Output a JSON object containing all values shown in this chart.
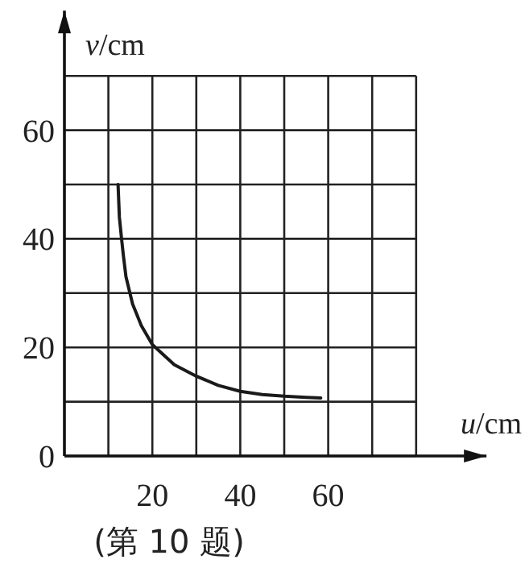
{
  "chart_data": {
    "type": "line",
    "xlabel": "*u*/cm",
    "ylabel": "*v*/cm",
    "annotations": [
      "(第 10 题)"
    ],
    "xlim": [
      0,
      96
    ],
    "ylim": [
      0,
      82
    ],
    "xticks": [
      {
        "value": 10,
        "label": null
      },
      20,
      {
        "value": 30,
        "label": null
      },
      40,
      {
        "value": 50,
        "label": null
      },
      60,
      {
        "value": 70,
        "label": null
      },
      {
        "value": 80,
        "label": null
      }
    ],
    "yticks": [
      0,
      {
        "value": 10,
        "label": null
      },
      20,
      {
        "value": 30,
        "label": null
      },
      40,
      {
        "value": 50,
        "label": null
      },
      60,
      {
        "value": 70,
        "label": null
      }
    ],
    "grid": true,
    "line_style": "solid",
    "marker": "none",
    "series": [
      {
        "color": "#1a1a1a",
        "x": [
          12.2,
          12.5,
          13,
          13.4,
          14,
          15.5,
          17.5,
          20,
          25,
          30,
          35,
          40,
          45,
          50,
          55,
          58.3
        ],
        "values": [
          50,
          44,
          40,
          37,
          33,
          28,
          24,
          20.5,
          16.8,
          14.7,
          13,
          11.9,
          11.3,
          11,
          10.8,
          10.7
        ]
      }
    ]
  }
}
